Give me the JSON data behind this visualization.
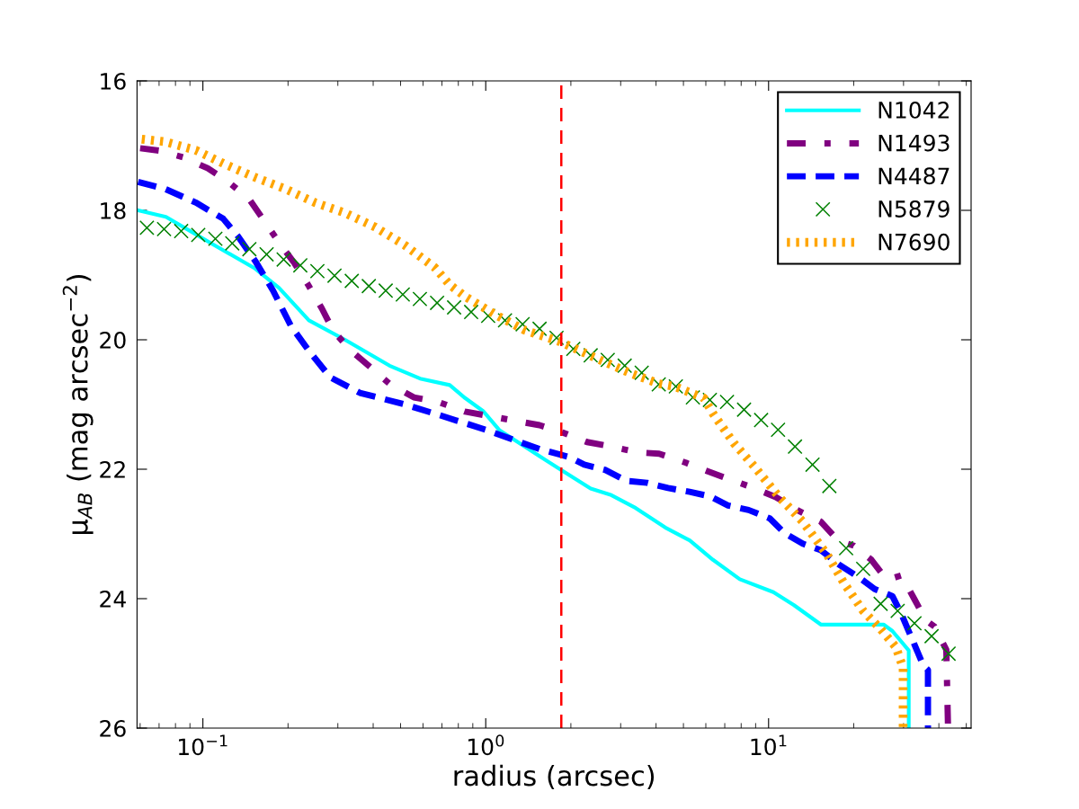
{
  "chart_data": {
    "type": "line",
    "xlabel": "radius (arcsec)",
    "ylabel": "μ$_{AB}$ (mag arcsec$^{−2}$)",
    "log": "x",
    "grid": false,
    "legend": "top right",
    "xlim": [
      0.0585,
      52
    ],
    "xticks": [
      {
        "value": 0.1,
        "label": "10$^{−1}$"
      },
      {
        "value": 1,
        "label": "10$^{0}$"
      },
      {
        "value": 10,
        "label": "10$^{1}$"
      }
    ],
    "ylim": [
      26,
      16
    ],
    "yticks": [
      16,
      18,
      20,
      22,
      24,
      26
    ],
    "ref_lines": [
      {
        "axis": "x",
        "value": 1.85,
        "label": null,
        "color": "#ff0000",
        "line_style": "dashed"
      }
    ],
    "series": [
      {
        "name": "N1042",
        "color": "#00ffff",
        "line_style": "solid",
        "marker": "none",
        "x": [
          0.059,
          0.074,
          0.106,
          0.153,
          0.186,
          0.237,
          0.318,
          0.457,
          0.586,
          0.746,
          0.845,
          0.978,
          1.12,
          1.55,
          1.83,
          2.35,
          2.78,
          3.39,
          4.31,
          5.26,
          6.36,
          7.91,
          10.4,
          12.3,
          15.3,
          19.6,
          25.5,
          27.4,
          31.3,
          31.3
        ],
        "values": [
          18.0,
          18.1,
          18.5,
          18.9,
          19.2,
          19.7,
          20.0,
          20.4,
          20.6,
          20.7,
          20.9,
          21.1,
          21.4,
          21.8,
          22.0,
          22.3,
          22.4,
          22.6,
          22.9,
          23.1,
          23.4,
          23.7,
          23.9,
          24.1,
          24.4,
          24.4,
          24.4,
          24.5,
          24.8,
          26.0
        ]
      },
      {
        "name": "N1493",
        "color": "#800080",
        "line_style": "dashdot",
        "marker": "none",
        "x": [
          0.06,
          0.0706,
          0.0851,
          0.104,
          0.123,
          0.146,
          0.164,
          0.186,
          0.211,
          0.237,
          0.263,
          0.289,
          0.334,
          0.395,
          0.457,
          0.557,
          0.679,
          0.845,
          1.55,
          1.89,
          2.28,
          2.78,
          3.46,
          4.1,
          5.1,
          5.9,
          7.19,
          8.74,
          10.6,
          12.6,
          15.3,
          17.7,
          20.0,
          23.1,
          26.2,
          29.5,
          32.8,
          35.9,
          38.6,
          42.5,
          43.1
        ],
        "values": [
          17.04,
          17.08,
          17.18,
          17.35,
          17.56,
          17.83,
          18.15,
          18.5,
          18.82,
          19.17,
          19.51,
          19.86,
          20.17,
          20.44,
          20.68,
          20.89,
          20.96,
          21.11,
          21.32,
          21.44,
          21.58,
          21.65,
          21.74,
          21.76,
          21.9,
          22.01,
          22.15,
          22.28,
          22.43,
          22.63,
          22.81,
          23.11,
          23.18,
          23.4,
          23.71,
          23.64,
          24.01,
          24.33,
          24.43,
          24.79,
          26.0
        ]
      },
      {
        "name": "N4487",
        "color": "#0000ff",
        "line_style": "dashed",
        "marker": "none",
        "x": [
          0.059,
          0.0736,
          0.0944,
          0.118,
          0.133,
          0.153,
          0.177,
          0.205,
          0.237,
          0.282,
          0.359,
          0.518,
          0.659,
          1.0,
          1.55,
          1.97,
          2.23,
          2.64,
          3.15,
          3.72,
          4.41,
          5.26,
          6.22,
          7.19,
          8.5,
          10.1,
          11.4,
          13.2,
          15.3,
          17.7,
          21.0,
          23.7,
          27.4,
          29.5,
          32.8,
          35.2,
          36.6,
          36.6
        ],
        "values": [
          17.56,
          17.67,
          17.88,
          18.13,
          18.4,
          18.78,
          19.24,
          19.79,
          20.17,
          20.58,
          20.82,
          21.0,
          21.14,
          21.39,
          21.69,
          21.81,
          21.93,
          22.01,
          22.18,
          22.21,
          22.29,
          22.35,
          22.42,
          22.56,
          22.63,
          22.76,
          22.99,
          23.15,
          23.25,
          23.47,
          23.68,
          23.85,
          23.96,
          24.24,
          24.71,
          25.03,
          25.1,
          26.0
        ]
      },
      {
        "name": "N5879",
        "color": "#008000",
        "type": "scatter",
        "marker": "cross",
        "x": [
          0.0634,
          0.0729,
          0.0838,
          0.0963,
          0.1107,
          0.127,
          0.146,
          0.168,
          0.193,
          0.221,
          0.254,
          0.292,
          0.336,
          0.386,
          0.443,
          0.509,
          0.585,
          0.673,
          0.773,
          0.888,
          1.02,
          1.17,
          1.35,
          1.55,
          1.78,
          2.04,
          2.35,
          2.7,
          3.1,
          3.56,
          4.09,
          4.7,
          5.4,
          6.2,
          7.13,
          8.19,
          9.41,
          10.8,
          12.4,
          14.3,
          16.4,
          18.8,
          21.6,
          24.9,
          28.6,
          32.8,
          37.7,
          43.3
        ],
        "values": [
          18.27,
          18.29,
          18.32,
          18.38,
          18.44,
          18.51,
          18.6,
          18.68,
          18.76,
          18.85,
          18.94,
          19.01,
          19.09,
          19.17,
          19.24,
          19.3,
          19.37,
          19.43,
          19.5,
          19.57,
          19.63,
          19.7,
          19.76,
          19.83,
          19.97,
          20.14,
          20.24,
          20.31,
          20.4,
          20.51,
          20.69,
          20.72,
          20.89,
          20.93,
          20.96,
          21.08,
          21.24,
          21.39,
          21.65,
          21.93,
          22.26,
          23.22,
          23.54,
          24.08,
          24.19,
          24.38,
          24.58,
          24.85
        ]
      },
      {
        "name": "N7690",
        "color": "#ffa500",
        "line_style": "dotted",
        "marker": "none",
        "x": [
          0.0608,
          0.0736,
          0.0943,
          0.12,
          0.153,
          0.196,
          0.249,
          0.318,
          0.407,
          0.518,
          0.659,
          0.746,
          0.845,
          1.08,
          1.37,
          1.83,
          2.53,
          3.22,
          4.1,
          4.64,
          5.9,
          6.36,
          7.55,
          8.95,
          10.9,
          13.2,
          16.1,
          18.6,
          21.6,
          24.9,
          28.2,
          29.9,
          29.9
        ],
        "values": [
          16.9,
          16.94,
          17.07,
          17.29,
          17.49,
          17.67,
          17.88,
          18.04,
          18.26,
          18.54,
          18.88,
          19.15,
          19.33,
          19.61,
          19.85,
          20.03,
          20.31,
          20.51,
          20.68,
          20.72,
          20.9,
          21.14,
          21.6,
          21.97,
          22.43,
          22.81,
          23.32,
          23.78,
          24.19,
          24.47,
          24.75,
          25.07,
          26.0
        ]
      }
    ]
  }
}
